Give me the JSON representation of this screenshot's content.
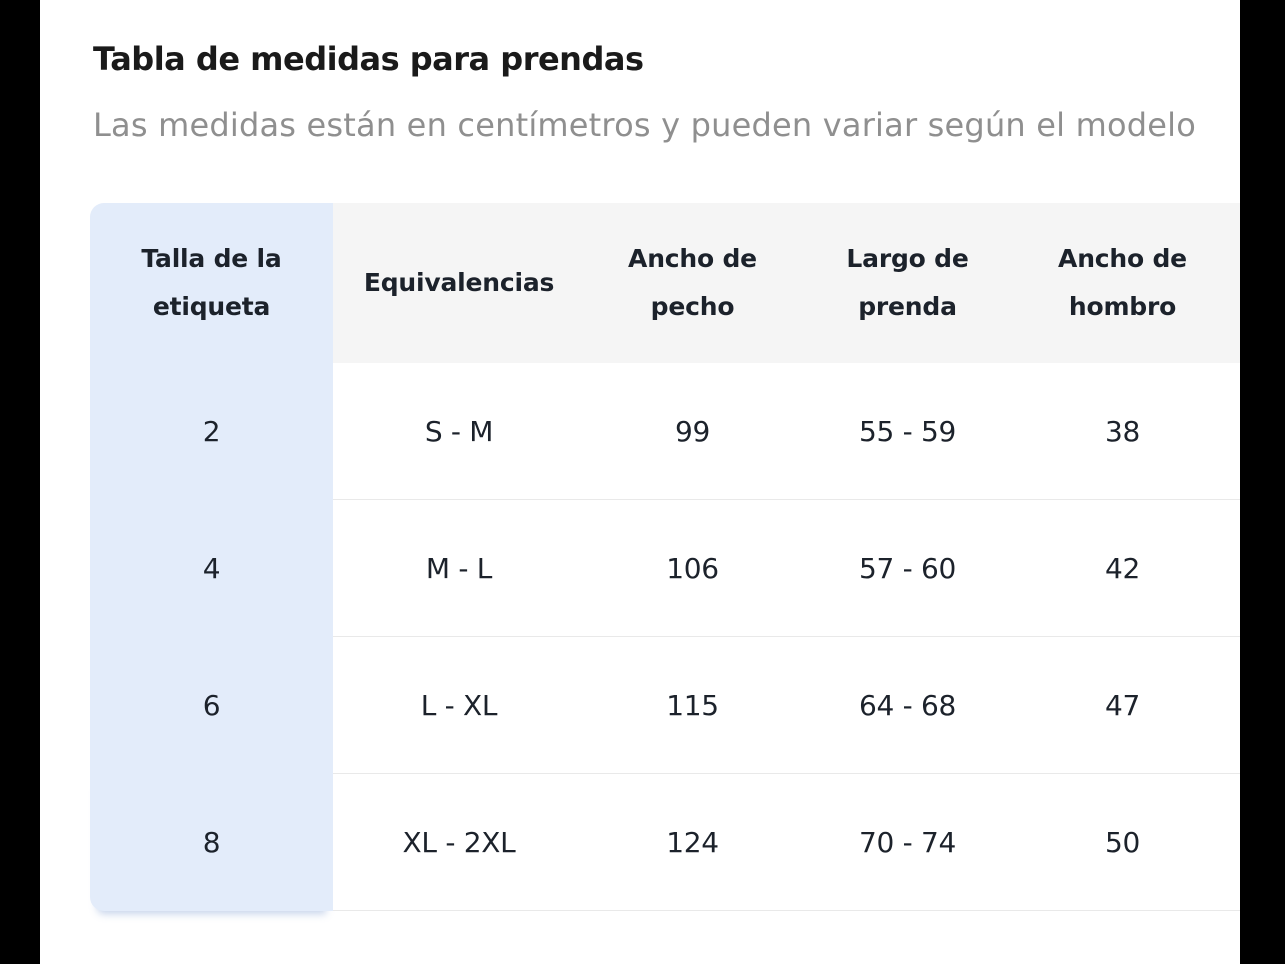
{
  "page": {
    "title": "Tabla de medidas para prendas",
    "subtitle": "Las medidas están en centímetros y pueden variar según el modelo"
  },
  "size_table": {
    "columns": {
      "label_size": "Talla de la\netiqueta",
      "equivalence": "Equivalencias",
      "chest_width": "Ancho de\npecho",
      "garment_length": "Largo de\nprenda",
      "shoulder_width": "Ancho de\nhombro"
    },
    "rows": [
      {
        "label_size": "2",
        "equivalence": "S - M",
        "chest_width": "99",
        "garment_length": "55 - 59",
        "shoulder_width": "38"
      },
      {
        "label_size": "4",
        "equivalence": "M - L",
        "chest_width": "106",
        "garment_length": "57 - 60",
        "shoulder_width": "42"
      },
      {
        "label_size": "6",
        "equivalence": "L - XL",
        "chest_width": "115",
        "garment_length": "64 - 68",
        "shoulder_width": "47"
      },
      {
        "label_size": "8",
        "equivalence": "XL - 2XL",
        "chest_width": "124",
        "garment_length": "70 - 74",
        "shoulder_width": "50"
      }
    ]
  },
  "colors": {
    "highlight_column_bg": "#e3ecfa",
    "header_row_bg": "#f5f5f5",
    "row_divider": "#e9e9e9",
    "title_text": "#1a1a1a",
    "subtitle_text": "#8f8f8f",
    "cell_text": "#1c222b",
    "side_bars": "#000000",
    "content_bg": "#ffffff"
  }
}
